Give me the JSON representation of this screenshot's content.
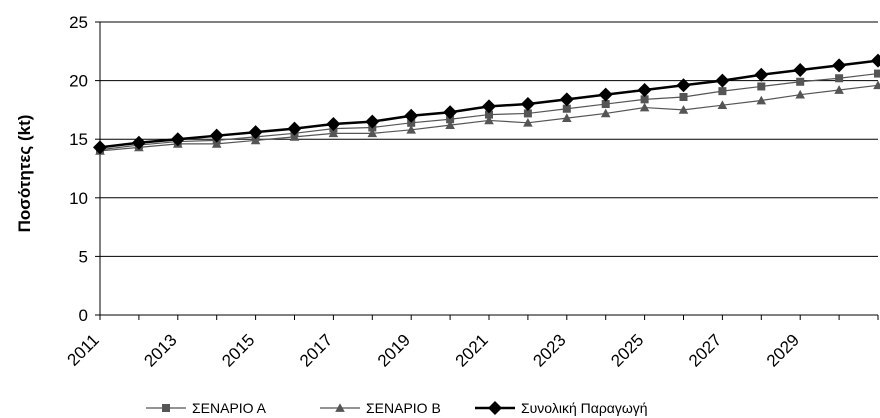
{
  "chart_data": {
    "type": "line",
    "title": "",
    "xlabel": "",
    "ylabel": "Ποσότητες (kt)",
    "ylim": [
      0,
      25
    ],
    "yticks": [
      0,
      5,
      10,
      15,
      20,
      25
    ],
    "x": [
      2011,
      2012,
      2013,
      2014,
      2015,
      2016,
      2017,
      2018,
      2019,
      2020,
      2021,
      2022,
      2023,
      2024,
      2025,
      2026,
      2027,
      2028,
      2029,
      2030,
      2031
    ],
    "xtick_labels": [
      "2011",
      "2013",
      "2015",
      "2017",
      "2019",
      "2021",
      "2023",
      "2025",
      "2027",
      "2029"
    ],
    "grid": "horizontal",
    "legend_position": "bottom",
    "series": [
      {
        "name": "ΣΕΝΑΡΙΟ Α",
        "marker": "square",
        "color": "#555555",
        "values": [
          14.1,
          14.5,
          14.8,
          14.9,
          15.2,
          15.5,
          15.9,
          16.0,
          16.4,
          16.7,
          17.1,
          17.2,
          17.6,
          18.0,
          18.4,
          18.6,
          19.1,
          19.5,
          19.9,
          20.2,
          20.6
        ]
      },
      {
        "name": "ΣΕΝΑΡΙΟ Β",
        "marker": "triangle",
        "color": "#555555",
        "values": [
          14.0,
          14.3,
          14.6,
          14.6,
          14.9,
          15.2,
          15.5,
          15.5,
          15.8,
          16.2,
          16.6,
          16.4,
          16.8,
          17.2,
          17.7,
          17.5,
          17.9,
          18.3,
          18.8,
          19.2,
          19.6
        ]
      },
      {
        "name": "Συνολική Παραγωγή",
        "marker": "diamond",
        "color": "#000000",
        "values": [
          14.3,
          14.7,
          15.0,
          15.3,
          15.6,
          15.9,
          16.3,
          16.5,
          17.0,
          17.3,
          17.8,
          18.0,
          18.4,
          18.8,
          19.2,
          19.6,
          20.0,
          20.5,
          20.9,
          21.3,
          21.7
        ]
      }
    ]
  }
}
